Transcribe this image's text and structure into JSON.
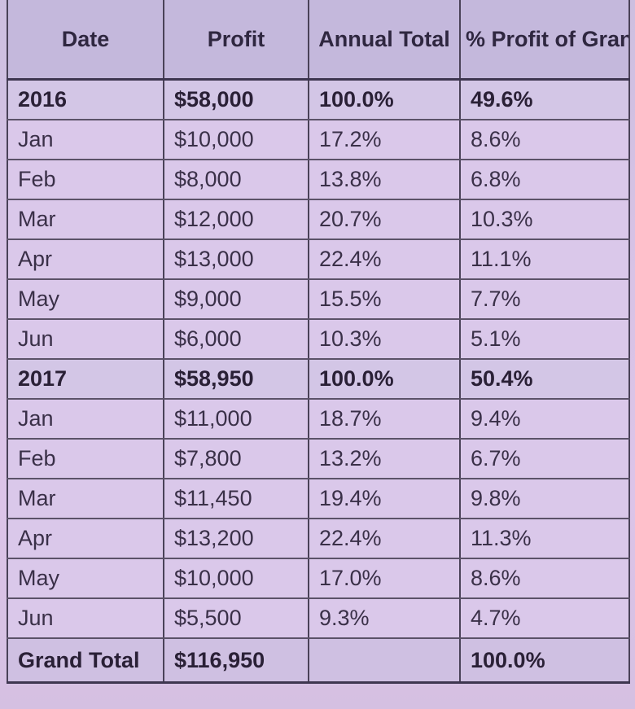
{
  "table": {
    "headers": {
      "date": "Date",
      "profit": "Profit",
      "annual_total": "Annual Total",
      "pct_grand_total": "% Profit of Grand Total"
    },
    "rows": [
      {
        "kind": "year",
        "date": "2016",
        "profit": "$58,000",
        "annual": "100.0%",
        "grand": "49.6%"
      },
      {
        "kind": "month",
        "date": "Jan",
        "profit": "$10,000",
        "annual": "17.2%",
        "grand": "8.6%"
      },
      {
        "kind": "month",
        "date": "Feb",
        "profit": "$8,000",
        "annual": "13.8%",
        "grand": "6.8%"
      },
      {
        "kind": "month",
        "date": "Mar",
        "profit": "$12,000",
        "annual": "20.7%",
        "grand": "10.3%"
      },
      {
        "kind": "month",
        "date": "Apr",
        "profit": "$13,000",
        "annual": "22.4%",
        "grand": "11.1%"
      },
      {
        "kind": "month",
        "date": "May",
        "profit": "$9,000",
        "annual": "15.5%",
        "grand": "7.7%"
      },
      {
        "kind": "month",
        "date": "Jun",
        "profit": "$6,000",
        "annual": "10.3%",
        "grand": "5.1%"
      },
      {
        "kind": "year",
        "date": "2017",
        "profit": "$58,950",
        "annual": "100.0%",
        "grand": "50.4%"
      },
      {
        "kind": "month",
        "date": "Jan",
        "profit": "$11,000",
        "annual": "18.7%",
        "grand": "9.4%"
      },
      {
        "kind": "month",
        "date": "Feb",
        "profit": "$7,800",
        "annual": "13.2%",
        "grand": "6.7%"
      },
      {
        "kind": "month",
        "date": "Mar",
        "profit": "$11,450",
        "annual": "19.4%",
        "grand": "9.8%"
      },
      {
        "kind": "month",
        "date": "Apr",
        "profit": "$13,200",
        "annual": "22.4%",
        "grand": "11.3%"
      },
      {
        "kind": "month",
        "date": "May",
        "profit": "$10,000",
        "annual": "17.0%",
        "grand": "8.6%"
      },
      {
        "kind": "month",
        "date": "Jun",
        "profit": "$5,500",
        "annual": "9.3%",
        "grand": "4.7%"
      },
      {
        "kind": "total",
        "date": "Grand Total",
        "profit": "$116,950",
        "annual": "",
        "grand": "100.0%"
      }
    ]
  }
}
